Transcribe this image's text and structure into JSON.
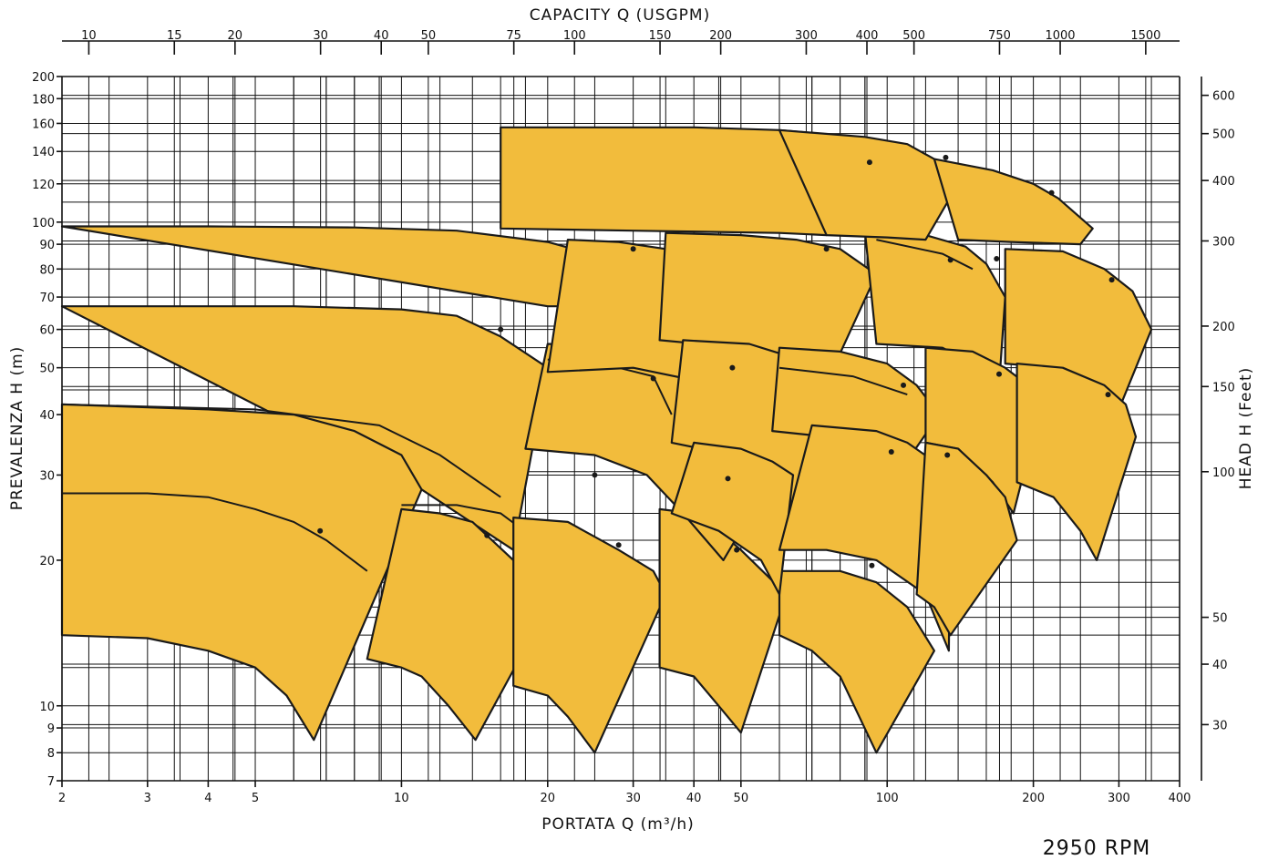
{
  "chart_data": {
    "type": "area",
    "title": "CAPACITY  Q (USGPM)",
    "xlabel": "PORTATA  Q (m³/h)",
    "ylabel": "PREVALENZA  H (m)",
    "ylabel_right": "HEAD  H (Feet)",
    "annotation": "2950 RPM",
    "x_scale": "log",
    "y_scale": "log",
    "xlim": [
      2,
      400
    ],
    "ylim": [
      7,
      200
    ],
    "x_ticks": [
      2,
      3,
      4,
      5,
      10,
      20,
      30,
      40,
      50,
      100,
      200,
      300,
      400
    ],
    "y_ticks": [
      7,
      8,
      9,
      10,
      20,
      30,
      40,
      50,
      60,
      70,
      80,
      90,
      100,
      120,
      140,
      160,
      180,
      200
    ],
    "top_ticks": [
      10,
      15,
      20,
      30,
      40,
      50,
      75,
      100,
      150,
      200,
      300,
      400,
      500,
      750,
      1000,
      1500
    ],
    "right_ticks": [
      30,
      40,
      50,
      100,
      150,
      200,
      300,
      400,
      500,
      600
    ],
    "grid": true,
    "zones": [
      {
        "top": [
          [
            2,
            98
          ],
          [
            4,
            98
          ],
          [
            8,
            97.5
          ],
          [
            13,
            96
          ],
          [
            20,
            91
          ],
          [
            28,
            83
          ],
          [
            35,
            72
          ]
        ],
        "bottom": [
          [
            20,
            67
          ],
          [
            30,
            67
          ]
        ],
        "mid": [],
        "bep": []
      },
      {
        "top": [
          [
            2,
            67
          ],
          [
            6,
            67
          ],
          [
            10,
            66
          ],
          [
            13,
            64
          ],
          [
            16,
            58
          ],
          [
            20,
            50
          ]
        ],
        "bottom": [
          [
            11,
            28
          ],
          [
            17,
            21
          ]
        ],
        "mid": [
          [
            2,
            42
          ],
          [
            5,
            41
          ],
          [
            9,
            38
          ],
          [
            12,
            33
          ],
          [
            16,
            27
          ]
        ],
        "bep": [
          [
            16,
            60
          ],
          [
            8,
            36
          ]
        ]
      },
      {
        "top": [
          [
            2,
            42
          ],
          [
            4,
            41
          ],
          [
            6,
            40
          ],
          [
            8,
            37
          ],
          [
            10,
            33
          ],
          [
            11,
            28
          ]
        ],
        "bottom": [
          [
            2,
            14
          ],
          [
            3,
            13.8
          ],
          [
            4,
            13
          ],
          [
            5,
            12
          ],
          [
            5.8,
            10.5
          ],
          [
            6.6,
            8.5
          ]
        ],
        "mid": [
          [
            2,
            27.5
          ],
          [
            3,
            27.5
          ],
          [
            4,
            27
          ],
          [
            5,
            25.5
          ],
          [
            6,
            24
          ],
          [
            7,
            22
          ],
          [
            8.5,
            19
          ]
        ],
        "bep": [
          [
            6.8,
            23
          ]
        ]
      },
      {
        "top": [
          [
            10,
            25.5
          ],
          [
            12,
            25
          ],
          [
            14,
            24
          ],
          [
            17,
            20
          ],
          [
            20,
            16
          ]
        ],
        "bottom": [
          [
            8.5,
            12.5
          ],
          [
            10,
            12
          ],
          [
            11,
            11.5
          ],
          [
            12.5,
            10
          ],
          [
            14.2,
            8.5
          ]
        ],
        "mid": [
          [
            10,
            26
          ],
          [
            13,
            26
          ],
          [
            16,
            25
          ],
          [
            19,
            22
          ]
        ],
        "bep": [
          [
            15,
            22.5
          ]
        ]
      },
      {
        "top": [
          [
            17,
            24.5
          ],
          [
            22,
            24
          ],
          [
            28,
            21
          ],
          [
            33,
            19
          ],
          [
            35,
            17
          ]
        ],
        "bottom": [
          [
            17,
            11
          ],
          [
            20,
            10.5
          ],
          [
            22,
            9.5
          ],
          [
            25,
            8
          ]
        ],
        "mid": [],
        "bep": [
          [
            28,
            21.5
          ]
        ]
      },
      {
        "top": [
          [
            34,
            25.5
          ],
          [
            40,
            25
          ],
          [
            45,
            23
          ],
          [
            50,
            21
          ],
          [
            62,
            17
          ]
        ],
        "bottom": [
          [
            34,
            12
          ],
          [
            40,
            11.5
          ],
          [
            45,
            10
          ],
          [
            50,
            8.8
          ]
        ],
        "mid": [],
        "bep": [
          [
            49,
            21
          ]
        ]
      },
      {
        "top": [
          [
            60,
            19
          ],
          [
            80,
            19
          ],
          [
            95,
            18
          ],
          [
            110,
            16
          ],
          [
            125,
            13
          ]
        ],
        "bottom": [
          [
            60,
            14
          ],
          [
            70,
            13
          ],
          [
            80,
            11.5
          ],
          [
            95,
            8
          ]
        ],
        "mid": [],
        "bep": [
          [
            93,
            19.5
          ]
        ]
      },
      {
        "top": [
          [
            20,
            56
          ],
          [
            30,
            55
          ],
          [
            40,
            52
          ],
          [
            50,
            48
          ],
          [
            60,
            39
          ],
          [
            64,
            35
          ]
        ],
        "bottom": [
          [
            18,
            34
          ],
          [
            25,
            33
          ],
          [
            32,
            30
          ],
          [
            38,
            25
          ],
          [
            46,
            20
          ]
        ],
        "mid": [
          [
            20,
            52
          ],
          [
            28,
            50
          ],
          [
            33,
            48
          ],
          [
            36,
            40
          ]
        ],
        "bep": [
          [
            33,
            47.5
          ],
          [
            25,
            30
          ]
        ]
      },
      {
        "top": [
          [
            22,
            92
          ],
          [
            28,
            91
          ],
          [
            35,
            88
          ],
          [
            45,
            83
          ],
          [
            60,
            74
          ],
          [
            65,
            62
          ]
        ],
        "bottom": [
          [
            20,
            49
          ],
          [
            30,
            50
          ],
          [
            45,
            46
          ],
          [
            55,
            40
          ]
        ],
        "mid": [],
        "bep": [
          [
            30,
            88
          ]
        ]
      },
      {
        "top": [
          [
            35,
            95
          ],
          [
            50,
            94
          ],
          [
            65,
            92
          ],
          [
            80,
            88
          ],
          [
            95,
            78
          ]
        ],
        "bottom": [
          [
            34,
            57
          ],
          [
            50,
            55
          ],
          [
            62,
            49
          ],
          [
            70,
            40
          ]
        ],
        "mid": [],
        "bep": [
          [
            75,
            88
          ]
        ]
      },
      {
        "top": [
          [
            38,
            57
          ],
          [
            52,
            56
          ],
          [
            62,
            53
          ],
          [
            70,
            50
          ],
          [
            80,
            44
          ]
        ],
        "bottom": [
          [
            36,
            35
          ],
          [
            48,
            33
          ],
          [
            58,
            30
          ],
          [
            64,
            26
          ]
        ],
        "mid": [],
        "bep": [
          [
            48,
            50
          ]
        ]
      },
      {
        "top": [
          [
            40,
            35
          ],
          [
            50,
            34
          ],
          [
            58,
            32
          ],
          [
            64,
            30
          ]
        ],
        "bottom": [
          [
            36,
            25
          ],
          [
            45,
            23
          ],
          [
            55,
            20
          ],
          [
            60,
            17
          ]
        ],
        "mid": [],
        "bep": [
          [
            47,
            29.5
          ]
        ]
      },
      {
        "top": [
          [
            60,
            55
          ],
          [
            80,
            54
          ],
          [
            100,
            51
          ],
          [
            115,
            46
          ],
          [
            128,
            40
          ]
        ],
        "bottom": [
          [
            58,
            37
          ],
          [
            75,
            36
          ],
          [
            90,
            33
          ],
          [
            105,
            30
          ]
        ],
        "mid": [
          [
            60,
            50
          ],
          [
            85,
            48
          ],
          [
            110,
            44
          ]
        ],
        "bep": [
          [
            108,
            46
          ]
        ]
      },
      {
        "top": [
          [
            70,
            38
          ],
          [
            95,
            37
          ],
          [
            110,
            35
          ],
          [
            125,
            32
          ],
          [
            135,
            28
          ]
        ],
        "bottom": [
          [
            60,
            21
          ],
          [
            75,
            21
          ],
          [
            95,
            20
          ],
          [
            120,
            17
          ],
          [
            134,
            13
          ]
        ],
        "mid": [],
        "bep": [
          [
            102,
            33.5
          ]
        ]
      },
      {
        "top": [
          [
            90,
            96
          ],
          [
            120,
            94
          ],
          [
            145,
            89
          ],
          [
            160,
            82
          ],
          [
            175,
            70
          ]
        ],
        "bottom": [
          [
            95,
            56
          ],
          [
            130,
            55
          ],
          [
            150,
            51
          ],
          [
            170,
            46
          ]
        ],
        "mid": [
          [
            95,
            92
          ],
          [
            130,
            86
          ],
          [
            150,
            80
          ]
        ],
        "bep": [
          [
            135,
            83.5
          ],
          [
            168,
            84
          ]
        ]
      },
      {
        "top": [
          [
            120,
            55
          ],
          [
            150,
            54
          ],
          [
            175,
            50
          ],
          [
            195,
            46
          ],
          [
            205,
            40
          ]
        ],
        "bottom": [
          [
            120,
            35
          ],
          [
            140,
            34
          ],
          [
            165,
            29
          ],
          [
            182,
            25
          ]
        ],
        "mid": [],
        "bep": [
          [
            170,
            48.5
          ]
        ]
      },
      {
        "top": [
          [
            120,
            35
          ],
          [
            140,
            34
          ],
          [
            160,
            30
          ],
          [
            175,
            27
          ],
          [
            185,
            22
          ]
        ],
        "bottom": [
          [
            115,
            17
          ],
          [
            125,
            16
          ],
          [
            135,
            14
          ]
        ],
        "mid": [],
        "bep": [
          [
            133,
            33
          ]
        ]
      },
      {
        "top": [
          [
            175,
            88
          ],
          [
            230,
            87
          ],
          [
            280,
            80
          ],
          [
            320,
            72
          ],
          [
            350,
            60
          ]
        ],
        "bottom": [
          [
            175,
            51
          ],
          [
            220,
            50
          ],
          [
            270,
            46
          ],
          [
            300,
            41
          ]
        ],
        "mid": [],
        "bep": [
          [
            290,
            76
          ]
        ]
      },
      {
        "top": [
          [
            185,
            51
          ],
          [
            230,
            50
          ],
          [
            280,
            46
          ],
          [
            310,
            42
          ],
          [
            325,
            36
          ]
        ],
        "bottom": [
          [
            185,
            29
          ],
          [
            220,
            27
          ],
          [
            250,
            23
          ],
          [
            270,
            20
          ]
        ],
        "mid": [],
        "bep": [
          [
            285,
            44
          ]
        ]
      },
      {
        "top": [
          [
            16,
            157
          ],
          [
            40,
            157
          ],
          [
            60,
            155
          ],
          [
            75,
            152
          ],
          [
            85,
            145
          ]
        ],
        "bottom": [
          [
            16,
            97
          ],
          [
            30,
            96
          ],
          [
            60,
            95
          ],
          [
            75,
            94
          ]
        ],
        "mid": [],
        "bep": []
      },
      {
        "top": [
          [
            60,
            155
          ],
          [
            90,
            150
          ],
          [
            110,
            145
          ],
          [
            125,
            135
          ],
          [
            140,
            120
          ]
        ],
        "bottom": [
          [
            75,
            94
          ],
          [
            100,
            93
          ],
          [
            120,
            92
          ]
        ],
        "mid": [],
        "bep": [
          [
            92,
            133
          ],
          [
            132,
            136
          ]
        ]
      },
      {
        "top": [
          [
            125,
            135
          ],
          [
            165,
            128
          ],
          [
            200,
            120
          ],
          [
            225,
            112
          ],
          [
            265,
            97
          ]
        ],
        "bottom": [
          [
            140,
            92
          ],
          [
            180,
            91
          ],
          [
            250,
            90
          ]
        ],
        "mid": [],
        "bep": [
          [
            218,
            115
          ]
        ]
      }
    ]
  }
}
